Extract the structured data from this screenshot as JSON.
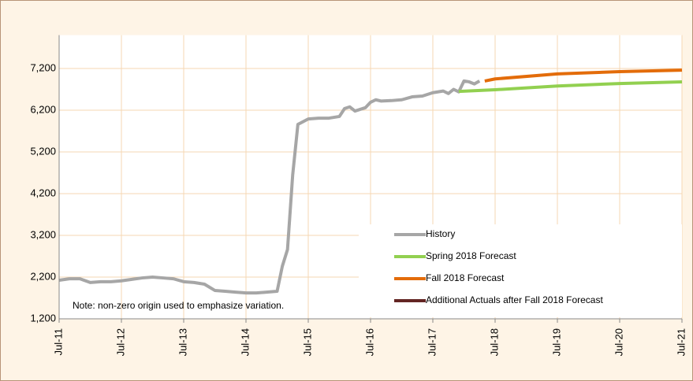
{
  "chart_data": {
    "type": "line",
    "note": "Note: non-zero origin used to emphasize variation.",
    "xlim": [
      "2011-07",
      "2021-07"
    ],
    "xticks": [
      {
        "value": "2011-07",
        "label": "Jul-11"
      },
      {
        "value": "2012-07",
        "label": "Jul-12"
      },
      {
        "value": "2013-07",
        "label": "Jul-13"
      },
      {
        "value": "2014-07",
        "label": "Jul-14"
      },
      {
        "value": "2015-07",
        "label": "Jul-15"
      },
      {
        "value": "2016-07",
        "label": "Jul-16"
      },
      {
        "value": "2017-07",
        "label": "Jul-17"
      },
      {
        "value": "2018-07",
        "label": "Jul-18"
      },
      {
        "value": "2019-07",
        "label": "Jul-19"
      },
      {
        "value": "2020-07",
        "label": "Jul-20"
      },
      {
        "value": "2021-07",
        "label": "Jul-21"
      }
    ],
    "ylim": [
      1200,
      8000
    ],
    "yticks": [
      {
        "value": 1200,
        "label": "1,200"
      },
      {
        "value": 2200,
        "label": "2,200"
      },
      {
        "value": 3200,
        "label": "3,200"
      },
      {
        "value": 4200,
        "label": "4,200"
      },
      {
        "value": 5200,
        "label": "5,200"
      },
      {
        "value": 6200,
        "label": "6,200"
      },
      {
        "value": 7200,
        "label": "7,200"
      }
    ],
    "grid": true,
    "legend": "lower right",
    "series": [
      {
        "name": "History",
        "color": "#a6a6a6",
        "x": [
          "2011-07",
          "2011-09",
          "2011-11",
          "2012-01",
          "2012-03",
          "2012-05",
          "2012-07",
          "2012-09",
          "2012-11",
          "2013-01",
          "2013-03",
          "2013-05",
          "2013-07",
          "2013-09",
          "2013-11",
          "2014-01",
          "2014-03",
          "2014-05",
          "2014-07",
          "2014-09",
          "2014-11",
          "2015-01",
          "2015-02",
          "2015-03",
          "2015-04",
          "2015-05",
          "2015-07",
          "2015-09",
          "2015-11",
          "2016-01",
          "2016-02",
          "2016-03",
          "2016-04",
          "2016-06",
          "2016-07",
          "2016-08",
          "2016-09",
          "2016-11",
          "2017-01",
          "2017-03",
          "2017-05",
          "2017-07",
          "2017-09",
          "2017-10",
          "2017-11",
          "2017-12",
          "2018-01",
          "2018-02",
          "2018-03",
          "2018-04"
        ],
        "values": [
          2125,
          2160,
          2160,
          2070,
          2090,
          2090,
          2110,
          2145,
          2180,
          2200,
          2180,
          2160,
          2090,
          2070,
          2030,
          1880,
          1860,
          1840,
          1820,
          1820,
          1840,
          1860,
          2460,
          2860,
          4650,
          5860,
          5990,
          6010,
          6010,
          6050,
          6240,
          6280,
          6180,
          6260,
          6390,
          6450,
          6420,
          6430,
          6450,
          6520,
          6540,
          6620,
          6660,
          6600,
          6700,
          6640,
          6900,
          6880,
          6830,
          6900
        ]
      },
      {
        "name": "Spring 2018 Forecast",
        "color": "#92d050",
        "x": [
          "2017-12",
          "2018-07",
          "2019-07",
          "2020-07",
          "2021-07"
        ],
        "values": [
          6650,
          6690,
          6780,
          6840,
          6880
        ]
      },
      {
        "name": "Fall 2018 Forecast",
        "color": "#e36c0a",
        "x": [
          "2018-05",
          "2018-07",
          "2019-07",
          "2020-07",
          "2021-07"
        ],
        "values": [
          6900,
          6950,
          7070,
          7125,
          7160
        ]
      },
      {
        "name": "Additional Actuals after Fall 2018 Forecast",
        "color": "#632523",
        "x": [],
        "values": []
      }
    ]
  }
}
